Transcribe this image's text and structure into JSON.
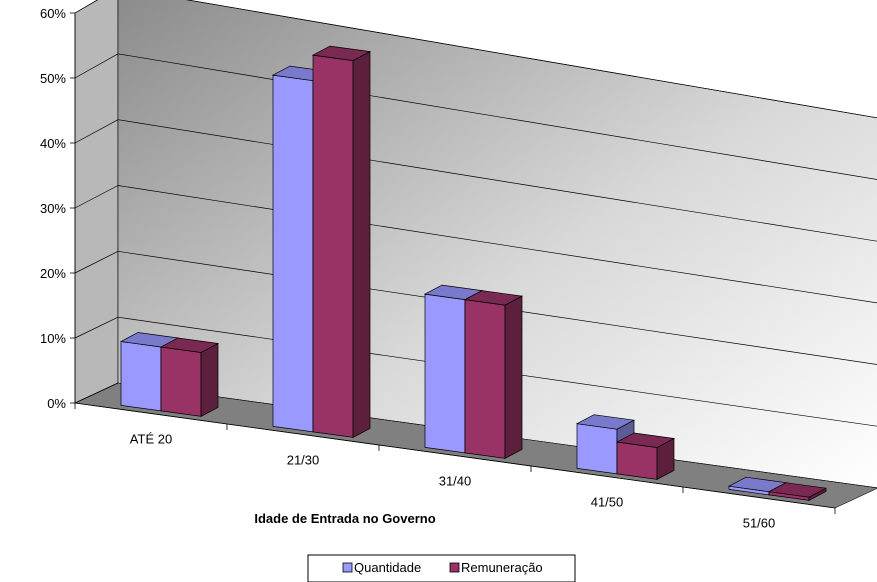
{
  "chart_data": {
    "type": "bar",
    "style": "3d-clustered-column",
    "title": "",
    "xlabel": "Idade de Entrada no Governo",
    "ylabel": "",
    "categories": [
      "ATÉ 20",
      "21/30",
      "31/40",
      "41/50",
      "51/60"
    ],
    "y_ticks": [
      "0%",
      "10%",
      "20%",
      "30%",
      "40%",
      "50%",
      "60%"
    ],
    "ylim": [
      0,
      60
    ],
    "grid": true,
    "legend_position": "bottom",
    "series": [
      {
        "name": "Quantidade",
        "values": [
          10,
          55,
          24,
          7,
          0.5
        ],
        "color": "#9999ff"
      },
      {
        "name": "Remuneração",
        "values": [
          10,
          59,
          24,
          5,
          0.5
        ],
        "color": "#993366"
      }
    ]
  }
}
